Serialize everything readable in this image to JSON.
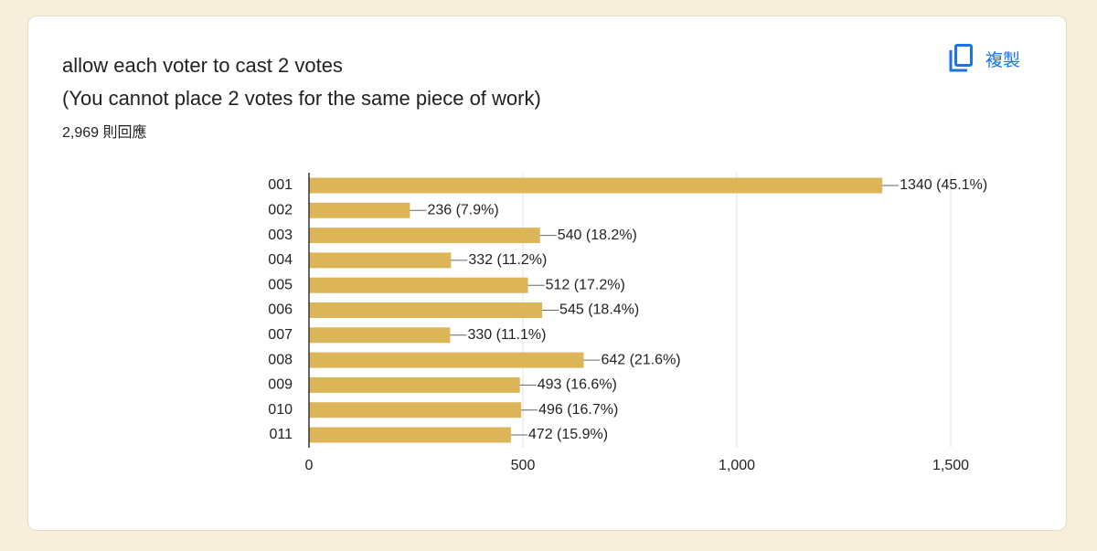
{
  "card": {
    "title_lines": [
      "allow each voter to cast 2 votes",
      "(You cannot place 2 votes for the same piece of work)"
    ],
    "responses": "2,969 則回應",
    "copy_button": "複製"
  },
  "chart_data": {
    "type": "bar",
    "orientation": "horizontal",
    "categories": [
      "001",
      "002",
      "003",
      "004",
      "005",
      "006",
      "007",
      "008",
      "009",
      "010",
      "011"
    ],
    "values": [
      1340,
      236,
      540,
      332,
      512,
      545,
      330,
      642,
      493,
      496,
      472
    ],
    "value_labels": [
      "1340 (45.1%)",
      "236 (7.9%)",
      "540 (18.2%)",
      "332 (11.2%)",
      "512 (17.2%)",
      "545 (18.4%)",
      "330 (11.1%)",
      "642 (21.6%)",
      "493 (16.6%)",
      "496 (16.7%)",
      "472 (15.9%)"
    ],
    "color": "#dcb558",
    "xlim": [
      0,
      1500
    ],
    "xticks": [
      0,
      500,
      {
        "value": 1000,
        "label": "1,000"
      },
      {
        "value": 1500,
        "label": "1,500"
      }
    ],
    "grid": true
  }
}
